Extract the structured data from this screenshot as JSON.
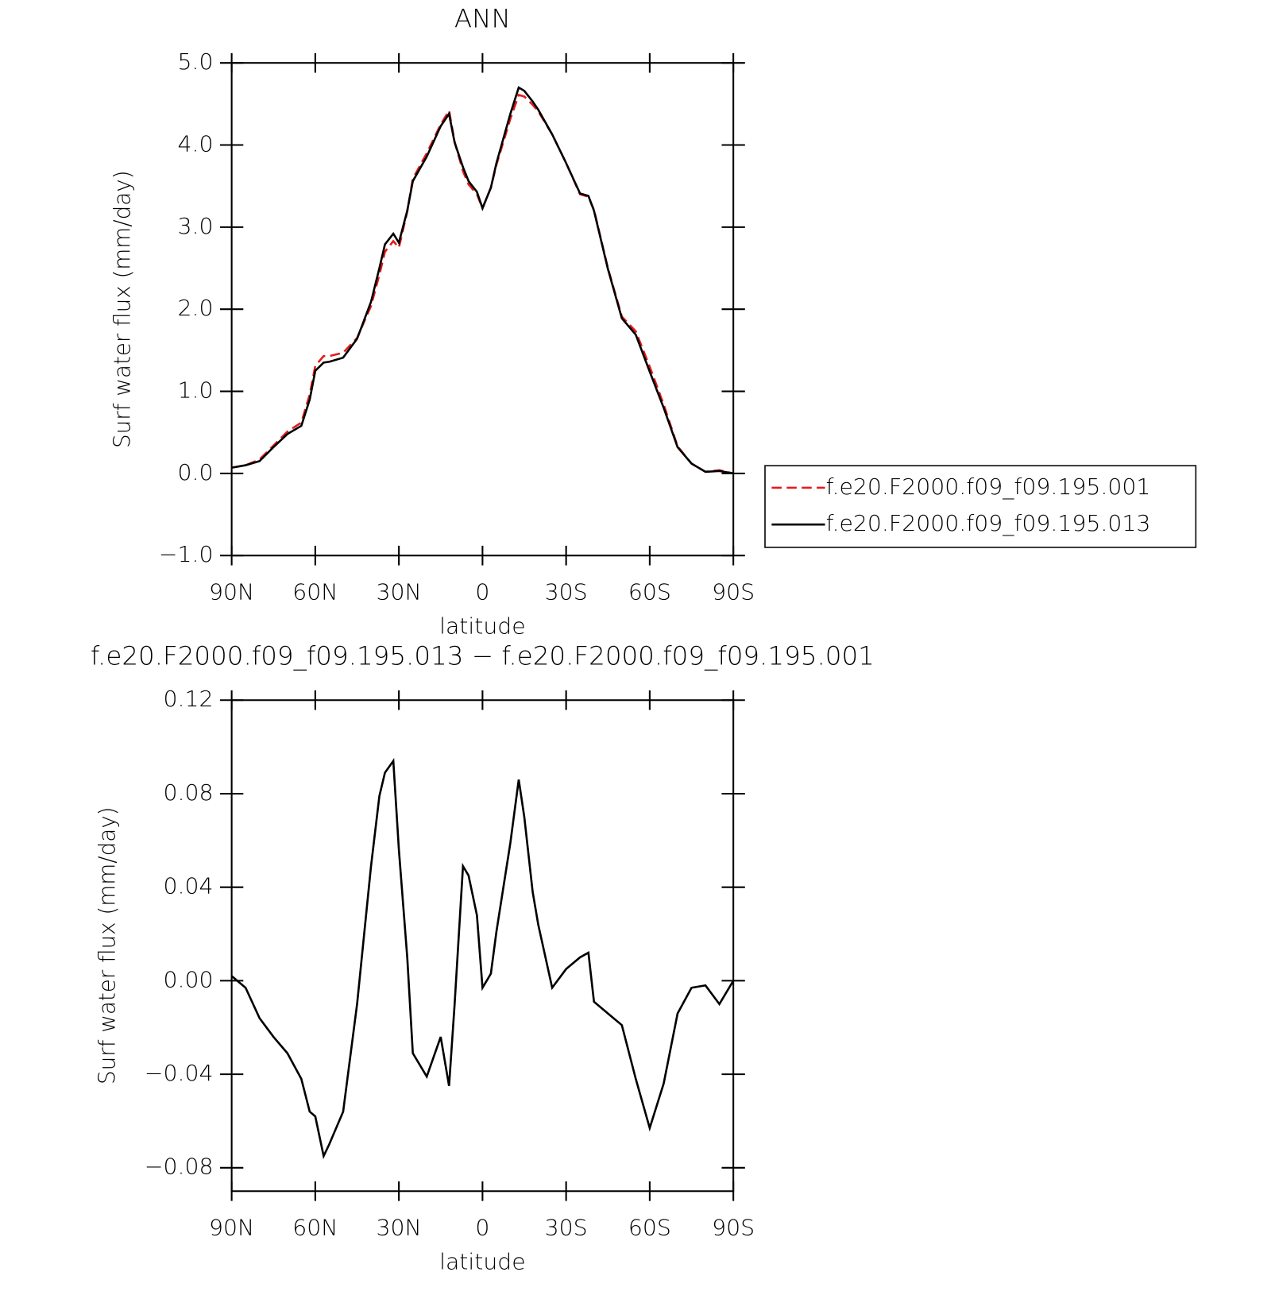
{
  "chart_data": [
    {
      "type": "line",
      "title": "ANN",
      "xlabel": "latitude",
      "ylabel": "Surf water flux (mm/day)",
      "x": [
        90,
        85,
        80,
        75,
        70,
        65,
        62,
        60,
        57,
        55,
        50,
        45,
        40,
        37,
        35,
        32,
        30,
        27,
        25,
        20,
        15,
        12,
        10,
        7,
        5,
        2,
        0,
        -3,
        -5,
        -10,
        -13,
        -15,
        -18,
        -20,
        -25,
        -30,
        -35,
        -38,
        -40,
        -45,
        -50,
        -55,
        -60,
        -65,
        -70,
        -75,
        -80,
        -85,
        -90
      ],
      "series": [
        {
          "name": "f.e20.F2000.f09_f09.195.001",
          "color": "#e41a1c",
          "dashed": true,
          "values": [
            0.07,
            0.1,
            0.17,
            0.34,
            0.51,
            0.62,
            0.96,
            1.31,
            1.43,
            1.43,
            1.47,
            1.65,
            2.04,
            2.42,
            2.7,
            2.83,
            2.75,
            3.19,
            3.59,
            3.9,
            4.25,
            4.42,
            4.04,
            3.68,
            3.52,
            3.4,
            3.23,
            3.48,
            3.76,
            4.32,
            4.61,
            4.59,
            4.49,
            4.41,
            4.13,
            3.78,
            3.4,
            3.37,
            3.21,
            2.5,
            1.91,
            1.73,
            1.3,
            0.84,
            0.33,
            0.12,
            0.02,
            0.04,
            0.0
          ]
        },
        {
          "name": "f.e20.F2000.f09_f09.195.013",
          "color": "#000000",
          "dashed": false,
          "values": [
            0.07,
            0.1,
            0.15,
            0.32,
            0.48,
            0.58,
            0.9,
            1.25,
            1.35,
            1.36,
            1.41,
            1.64,
            2.09,
            2.5,
            2.79,
            2.92,
            2.81,
            3.2,
            3.56,
            3.86,
            4.23,
            4.38,
            4.03,
            3.73,
            3.56,
            3.43,
            3.23,
            3.48,
            3.78,
            4.38,
            4.7,
            4.66,
            4.53,
            4.43,
            4.13,
            3.78,
            3.41,
            3.38,
            3.2,
            2.49,
            1.89,
            1.69,
            1.24,
            0.8,
            0.32,
            0.12,
            0.02,
            0.03,
            0.0
          ]
        }
      ],
      "xlim": [
        90,
        -90
      ],
      "xticks": [
        {
          "value": 90,
          "label": "90N"
        },
        {
          "value": 60,
          "label": "60N"
        },
        {
          "value": 30,
          "label": "30N"
        },
        0,
        {
          "value": -30,
          "label": "30S"
        },
        {
          "value": -60,
          "label": "60S"
        },
        {
          "value": -90,
          "label": "90S"
        }
      ],
      "ylim": [
        -1,
        5
      ],
      "yticks": [
        {
          "value": -1,
          "label": "−1.0"
        },
        {
          "value": 0,
          "label": "0.0"
        },
        {
          "value": 1,
          "label": "1.0"
        },
        {
          "value": 2,
          "label": "2.0"
        },
        {
          "value": 3,
          "label": "3.0"
        },
        {
          "value": 4,
          "label": "4.0"
        },
        {
          "value": 5,
          "label": "5.0"
        }
      ],
      "legend": "right"
    },
    {
      "type": "line",
      "title": "f.e20.F2000.f09_f09.195.013 − f.e20.F2000.f09_f09.195.001",
      "xlabel": "latitude",
      "ylabel": "Surf water flux (mm/day)",
      "x": [
        90,
        85,
        80,
        75,
        70,
        65,
        62,
        60,
        57,
        55,
        50,
        45,
        40,
        37,
        35,
        32,
        30,
        27,
        25,
        20,
        15,
        12,
        10,
        7,
        5,
        2,
        0,
        -3,
        -5,
        -10,
        -13,
        -15,
        -18,
        -20,
        -25,
        -30,
        -35,
        -38,
        -40,
        -45,
        -50,
        -55,
        -60,
        -65,
        -70,
        -75,
        -80,
        -85,
        -90
      ],
      "values": [
        0.002,
        -0.003,
        -0.016,
        -0.024,
        -0.031,
        -0.042,
        -0.056,
        -0.058,
        -0.075,
        -0.07,
        -0.056,
        -0.01,
        0.049,
        0.079,
        0.089,
        0.094,
        0.056,
        0.01,
        -0.031,
        -0.041,
        -0.024,
        -0.045,
        -0.01,
        0.049,
        0.045,
        0.028,
        -0.003,
        0.003,
        0.021,
        0.059,
        0.086,
        0.07,
        0.038,
        0.024,
        -0.003,
        0.005,
        0.01,
        0.012,
        -0.009,
        -0.014,
        -0.019,
        -0.042,
        -0.063,
        -0.044,
        -0.014,
        -0.003,
        -0.002,
        -0.01,
        0.0
      ],
      "color": "#000000",
      "xlim": [
        90,
        -90
      ],
      "xticks": [
        {
          "value": 90,
          "label": "90N"
        },
        {
          "value": 60,
          "label": "60N"
        },
        {
          "value": 30,
          "label": "30N"
        },
        0,
        {
          "value": -30,
          "label": "30S"
        },
        {
          "value": -60,
          "label": "60S"
        },
        {
          "value": -90,
          "label": "90S"
        }
      ],
      "ylim": [
        -0.09,
        0.12
      ],
      "yticks": [
        {
          "value": -0.08,
          "label": "−0.08"
        },
        {
          "value": -0.04,
          "label": "−0.04"
        },
        {
          "value": 0,
          "label": "0.00"
        },
        {
          "value": 0.04,
          "label": "0.04"
        },
        {
          "value": 0.08,
          "label": "0.08"
        },
        {
          "value": 0.12,
          "label": "0.12"
        }
      ]
    }
  ]
}
